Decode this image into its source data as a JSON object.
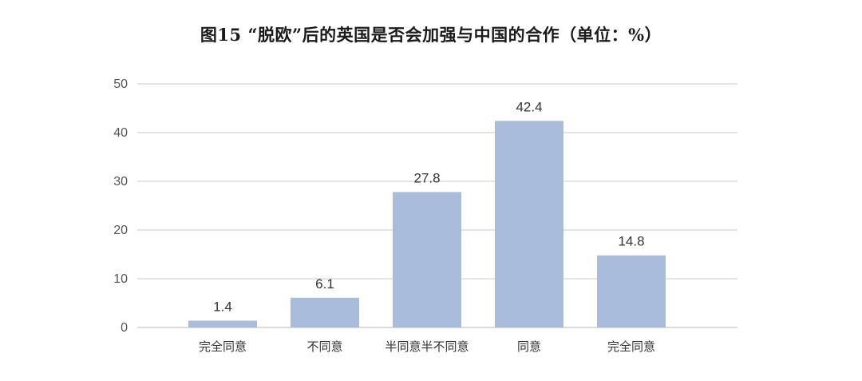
{
  "chart_data": {
    "type": "bar",
    "title": "图15 “脱欧”后的英国是否会加强与中国的合作（单位：%）",
    "categories": [
      "完全同意",
      "不同意",
      "半同意半不同意",
      "同意",
      "完全同意"
    ],
    "values": [
      1.4,
      6.1,
      27.8,
      42.4,
      14.8
    ],
    "data_labels": [
      "1.4",
      "6.1",
      "27.8",
      "42.4",
      "14.8"
    ],
    "xlabel": "",
    "ylabel": "",
    "ylim": [
      0,
      50
    ],
    "yticks": [
      0,
      10,
      20,
      30,
      40,
      50
    ],
    "grid": true,
    "legend": "none",
    "colors": {
      "bar": "#a9bcdb",
      "grid": "#c9c9c9",
      "baseline": "#b9b9b9"
    }
  }
}
